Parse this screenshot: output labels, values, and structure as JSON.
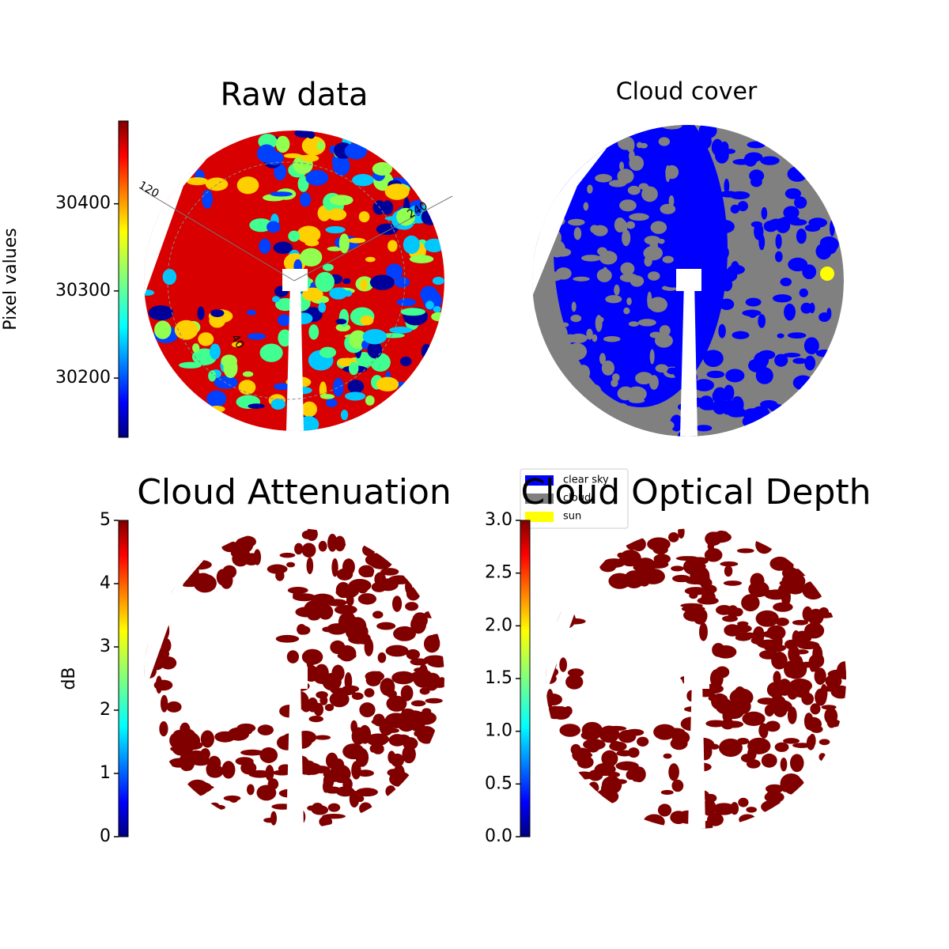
{
  "chart_data": [
    {
      "type": "image",
      "title": "Raw data",
      "colorbar_label": "Pixel values",
      "colormap": "jet",
      "ylim": [
        30132,
        30495
      ],
      "yticks": [
        30200,
        30300,
        30400
      ],
      "annotations": [
        "120",
        "240",
        "40"
      ]
    },
    {
      "type": "image",
      "title": "Cloud cover",
      "legend": [
        {
          "name": "clear sky",
          "color": "#0000ff"
        },
        {
          "name": "cloud",
          "color": "#808080"
        },
        {
          "name": "sun",
          "color": "#ffff00"
        }
      ]
    },
    {
      "type": "image",
      "title": "Cloud Attenuation",
      "colorbar_label": "dB",
      "colormap": "jet",
      "ylim": [
        0,
        5
      ],
      "yticks": [
        0,
        1,
        2,
        3,
        4,
        5
      ]
    },
    {
      "type": "image",
      "title": "Cloud Optical Depth",
      "colormap": "jet",
      "ylim": [
        0,
        3
      ],
      "yticks": [
        {
          "value": 0,
          "label": "0.0"
        },
        0.5,
        {
          "value": 1,
          "label": "1.0"
        },
        1.5,
        {
          "value": 2,
          "label": "2.0"
        },
        2.5,
        {
          "value": 3,
          "label": "3.0"
        }
      ]
    }
  ]
}
